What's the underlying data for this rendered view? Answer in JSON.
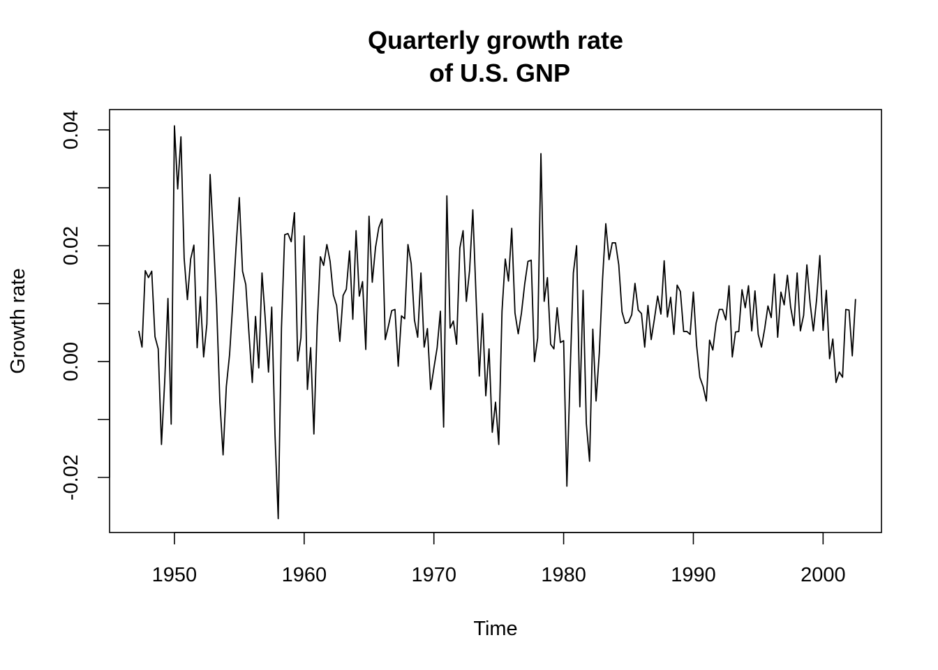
{
  "chart_data": {
    "type": "line",
    "title": [
      "Quarterly growth rate",
      "of U.S. GNP"
    ],
    "xlabel": "Time",
    "ylabel": "Growth rate",
    "xlim": [
      1945,
      2004.5
    ],
    "ylim": [
      -0.0295,
      0.0435
    ],
    "xticks": [
      1950,
      1960,
      1970,
      1980,
      1990,
      2000
    ],
    "xtick_labels": [
      "1950",
      "1960",
      "1970",
      "1980",
      "1990",
      "2000"
    ],
    "yticks": [
      -0.02,
      -0.01,
      0.0,
      0.01,
      0.02,
      0.03,
      0.04
    ],
    "ytick_labels": [
      "-0.02",
      "",
      "0.00",
      "",
      "0.02",
      "",
      "0.04"
    ],
    "grid": false,
    "x_start": 1947.25,
    "x_step": 0.25,
    "series": [
      {
        "values": [
          0.0053,
          0.0025,
          0.0157,
          0.0145,
          0.0156,
          0.0043,
          0.0022,
          -0.0143,
          -0.0034,
          0.0109,
          -0.0108,
          0.0407,
          0.0298,
          0.0388,
          0.0178,
          0.0107,
          0.0177,
          0.0201,
          0.0024,
          0.0112,
          0.0008,
          0.0065,
          0.0323,
          0.0215,
          0.0098,
          -0.0069,
          -0.0161,
          -0.0043,
          0.0012,
          0.0102,
          0.0198,
          0.0283,
          0.0156,
          0.0133,
          0.0047,
          -0.0036,
          0.0078,
          -0.0011,
          0.0153,
          0.0074,
          -0.0018,
          0.0094,
          -0.0125,
          -0.0271,
          0.0058,
          0.0219,
          0.0221,
          0.0207,
          0.0257,
          0.0001,
          0.0041,
          0.0217,
          -0.0048,
          0.0024,
          -0.0125,
          0.0061,
          0.0181,
          0.0166,
          0.0202,
          0.0173,
          0.0115,
          0.0097,
          0.0035,
          0.0114,
          0.0125,
          0.0191,
          0.0073,
          0.0226,
          0.0113,
          0.0138,
          0.0021,
          0.0251,
          0.0137,
          0.0197,
          0.0231,
          0.0246,
          0.0038,
          0.0062,
          0.0088,
          0.009,
          -0.0008,
          0.0079,
          0.0074,
          0.0202,
          0.0169,
          0.0072,
          0.0042,
          0.0153,
          0.0025,
          0.0057,
          -0.0048,
          -0.0011,
          0.0024,
          0.0087,
          -0.0113,
          0.0286,
          0.0058,
          0.007,
          0.003,
          0.0196,
          0.0226,
          0.0104,
          0.0157,
          0.0262,
          0.0112,
          -0.0025,
          0.0083,
          -0.0059,
          0.0022,
          -0.0122,
          -0.007,
          -0.0143,
          0.0087,
          0.0177,
          0.0139,
          0.023,
          0.0084,
          0.0048,
          0.0084,
          0.0134,
          0.0173,
          0.0175,
          0.0,
          0.0041,
          0.0359,
          0.0104,
          0.0145,
          0.003,
          0.0022,
          0.0093,
          0.0033,
          0.0036,
          -0.0215,
          -0.002,
          0.0153,
          0.02,
          -0.0078,
          0.0123,
          -0.0107,
          -0.0172,
          0.0056,
          -0.0068,
          0.0015,
          0.0142,
          0.0238,
          0.0176,
          0.0205,
          0.0205,
          0.0167,
          0.0086,
          0.0066,
          0.0068,
          0.0081,
          0.0135,
          0.0089,
          0.0083,
          0.0025,
          0.0097,
          0.0038,
          0.0074,
          0.0113,
          0.0082,
          0.0174,
          0.0077,
          0.0111,
          0.0047,
          0.0132,
          0.0121,
          0.0052,
          0.0052,
          0.0047,
          0.012,
          0.0028,
          -0.0027,
          -0.0043,
          -0.0068,
          0.0037,
          0.002,
          0.0066,
          0.009,
          0.009,
          0.0072,
          0.0131,
          0.0008,
          0.0051,
          0.0052,
          0.0124,
          0.0093,
          0.0131,
          0.0053,
          0.0122,
          0.0047,
          0.0025,
          0.0057,
          0.0096,
          0.0076,
          0.0151,
          0.0042,
          0.012,
          0.0098,
          0.0149,
          0.0094,
          0.0062,
          0.0153,
          0.0053,
          0.008,
          0.0167,
          0.0101,
          0.0053,
          0.0107,
          0.0183,
          0.0054,
          0.0123,
          0.0005,
          0.0039,
          -0.0036,
          -0.0018,
          -0.0027,
          0.009,
          0.0089,
          0.001,
          0.0108
        ]
      }
    ]
  }
}
